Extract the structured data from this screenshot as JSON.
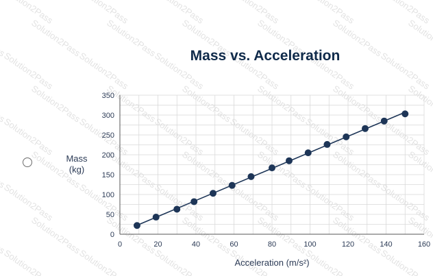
{
  "chart_data": {
    "type": "scatter",
    "title": "Mass vs. Acceleration",
    "xlabel": "Acceleration (m/s²)",
    "ylabel": [
      "Mass",
      "(kg)"
    ],
    "xlim": [
      0,
      160
    ],
    "ylim": [
      0,
      350
    ],
    "x_ticks": [
      0,
      20,
      40,
      60,
      80,
      100,
      120,
      140,
      160
    ],
    "y_ticks": [
      0,
      50,
      100,
      150,
      200,
      250,
      300,
      350
    ],
    "grid": true,
    "trendline": true,
    "points": [
      {
        "x": 9,
        "y": 22
      },
      {
        "x": 19,
        "y": 43
      },
      {
        "x": 30,
        "y": 63
      },
      {
        "x": 39,
        "y": 82
      },
      {
        "x": 49,
        "y": 103
      },
      {
        "x": 59,
        "y": 123
      },
      {
        "x": 69,
        "y": 145
      },
      {
        "x": 80,
        "y": 167
      },
      {
        "x": 89,
        "y": 185
      },
      {
        "x": 99,
        "y": 205
      },
      {
        "x": 109,
        "y": 226
      },
      {
        "x": 119,
        "y": 245
      },
      {
        "x": 129,
        "y": 266
      },
      {
        "x": 139,
        "y": 285
      },
      {
        "x": 150,
        "y": 303
      }
    ],
    "colors": {
      "marker": "#1d3557",
      "line": "#1d3557",
      "grid": "#d9d9d9",
      "title": "#0f2a4a",
      "text": "#2b3a55"
    }
  },
  "watermark": "Solution2Pass",
  "radio": {
    "icon": "radio-circle-icon"
  }
}
